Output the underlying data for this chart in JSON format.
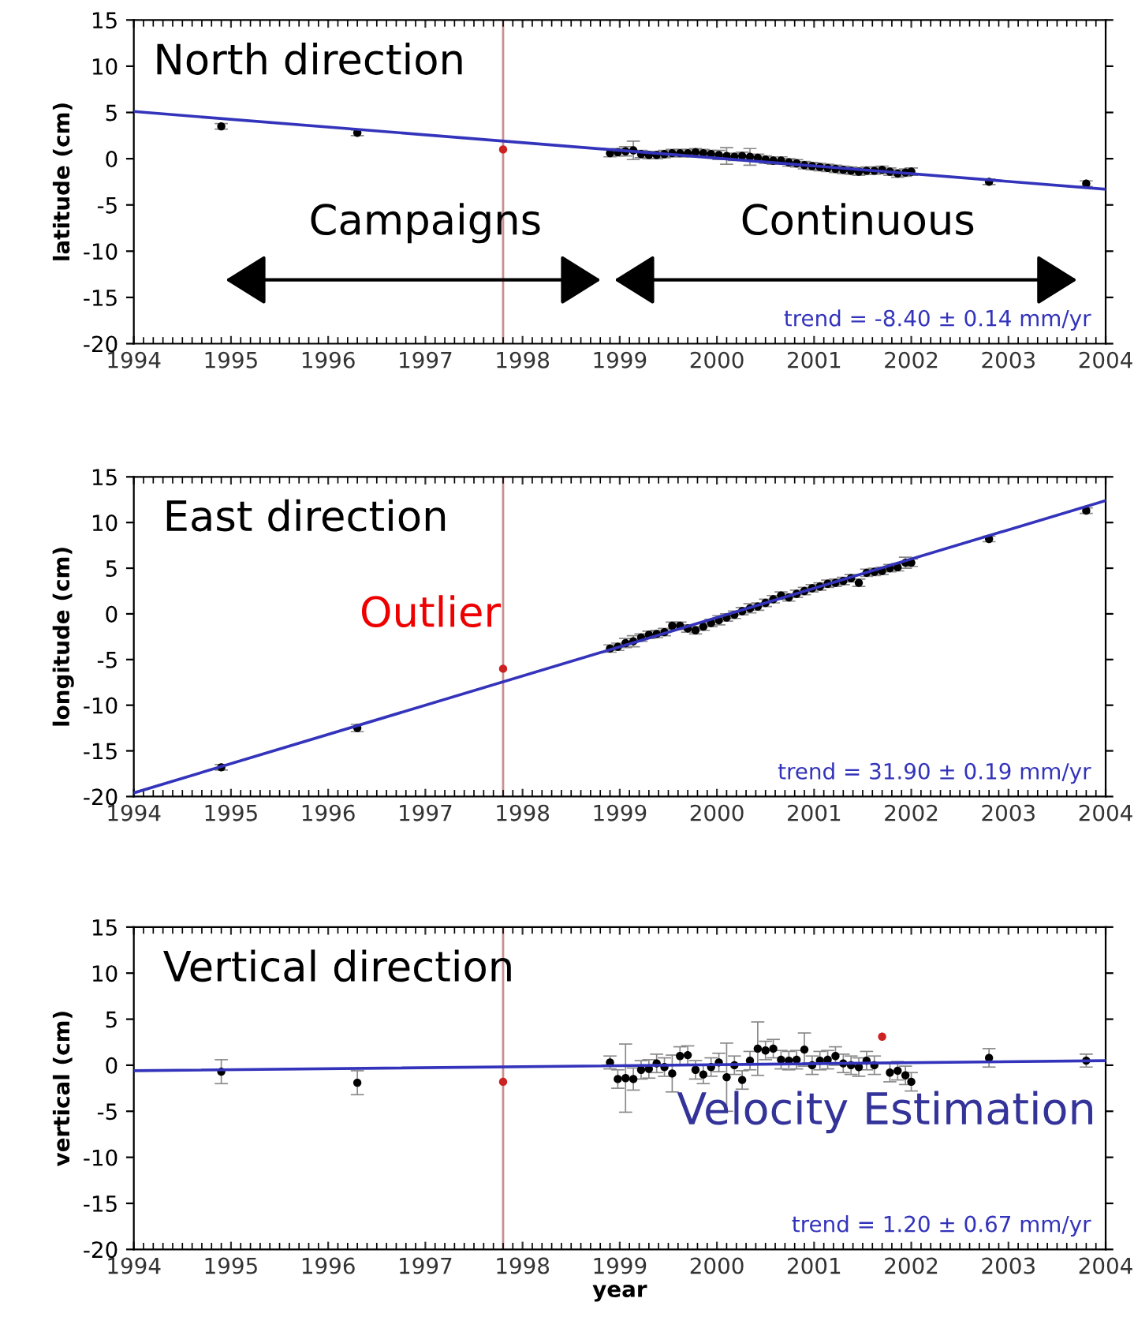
{
  "chart_data": [
    {
      "type": "scatter",
      "ylabel": "latitude (cm)",
      "xlim": [
        1994,
        2004
      ],
      "xticks": [
        1994,
        1995,
        1996,
        1997,
        1998,
        1999,
        2000,
        2001,
        2002,
        2003,
        2004
      ],
      "ylim": [
        -20,
        15
      ],
      "yticks": [
        -20,
        -15,
        -10,
        -5,
        0,
        5,
        10,
        15
      ],
      "grid": false,
      "legend": false,
      "marker": "circle",
      "annotations": [
        "North direction",
        "Campaigns",
        "Continuous",
        "trend = -8.40 ± 0.14 mm/yr"
      ],
      "ref_lines": [
        {
          "axis": "x",
          "value": 1997.8,
          "color": "#c89090"
        }
      ],
      "series": [
        {
          "color": "#000000",
          "x": [
            1994.9,
            1996.3,
            1998.9,
            1998.98,
            1999.06,
            1999.14,
            1999.22,
            1999.3,
            1999.38,
            1999.46,
            1999.54,
            1999.62,
            1999.7,
            1999.78,
            1999.86,
            1999.94,
            2000.02,
            2000.1,
            2000.18,
            2000.26,
            2000.34,
            2000.42,
            2000.5,
            2000.58,
            2000.66,
            2000.74,
            2000.82,
            2000.9,
            2000.98,
            2001.06,
            2001.14,
            2001.22,
            2001.3,
            2001.38,
            2001.46,
            2001.54,
            2001.62,
            2001.7,
            2001.78,
            2001.86,
            2001.94,
            2002.0,
            2002.8,
            2003.8
          ],
          "values": [
            3.5,
            2.8,
            0.6,
            0.7,
            0.8,
            0.9,
            0.5,
            0.4,
            0.4,
            0.5,
            0.6,
            0.6,
            0.6,
            0.7,
            0.6,
            0.5,
            0.4,
            0.3,
            0.2,
            0.3,
            0.2,
            0.1,
            -0.1,
            -0.2,
            -0.2,
            -0.4,
            -0.5,
            -0.7,
            -0.8,
            -0.9,
            -1.0,
            -1.1,
            -1.2,
            -1.3,
            -1.4,
            -1.3,
            -1.3,
            -1.2,
            -1.4,
            -1.6,
            -1.5,
            -1.4,
            -2.5,
            -2.7
          ],
          "errors": [
            0.3,
            0.3,
            0.4,
            0.4,
            0.5,
            1.0,
            0.4,
            0.4,
            0.4,
            0.4,
            0.4,
            0.4,
            0.4,
            0.4,
            0.4,
            0.4,
            0.5,
            0.9,
            0.4,
            0.4,
            0.9,
            0.4,
            0.4,
            0.4,
            0.4,
            0.4,
            0.4,
            0.4,
            0.4,
            0.4,
            0.4,
            0.4,
            0.4,
            0.4,
            0.4,
            0.4,
            0.4,
            0.4,
            0.4,
            0.4,
            0.4,
            0.4,
            0.3,
            0.3
          ]
        },
        {
          "color": "#cc2222",
          "x": [
            1997.8
          ],
          "values": [
            1.0
          ]
        },
        {
          "type": "line",
          "marker": "none",
          "color": "#3333bb",
          "x": [
            1994,
            2004
          ],
          "values": [
            5.1,
            -3.3
          ]
        }
      ]
    },
    {
      "type": "scatter",
      "ylabel": "longitude (cm)",
      "xlim": [
        1994,
        2004
      ],
      "xticks": [
        1994,
        1995,
        1996,
        1997,
        1998,
        1999,
        2000,
        2001,
        2002,
        2003,
        2004
      ],
      "ylim": [
        -20,
        15
      ],
      "yticks": [
        -20,
        -15,
        -10,
        -5,
        0,
        5,
        10,
        15
      ],
      "grid": false,
      "legend": false,
      "marker": "circle",
      "annotations": [
        "East direction",
        "Outlier",
        "trend = 31.90 ± 0.19 mm/yr"
      ],
      "ref_lines": [
        {
          "axis": "x",
          "value": 1997.8,
          "color": "#c89090"
        }
      ],
      "series": [
        {
          "color": "#000000",
          "x": [
            1994.9,
            1996.3,
            1998.9,
            1998.98,
            1999.06,
            1999.14,
            1999.22,
            1999.3,
            1999.38,
            1999.46,
            1999.54,
            1999.62,
            1999.7,
            1999.78,
            1999.86,
            1999.94,
            2000.02,
            2000.1,
            2000.18,
            2000.26,
            2000.34,
            2000.42,
            2000.5,
            2000.58,
            2000.66,
            2000.74,
            2000.82,
            2000.9,
            2000.98,
            2001.06,
            2001.14,
            2001.22,
            2001.3,
            2001.38,
            2001.46,
            2001.54,
            2001.62,
            2001.7,
            2001.78,
            2001.86,
            2001.94,
            2002.0,
            2002.8,
            2003.8
          ],
          "values": [
            -16.8,
            -12.5,
            -3.8,
            -3.6,
            -3.2,
            -3.0,
            -2.6,
            -2.3,
            -2.2,
            -2.0,
            -1.3,
            -1.3,
            -1.6,
            -1.8,
            -1.4,
            -1.0,
            -0.7,
            -0.4,
            -0.1,
            0.3,
            0.6,
            0.8,
            1.2,
            1.6,
            2.0,
            1.8,
            2.2,
            2.5,
            2.8,
            3.0,
            3.3,
            3.4,
            3.6,
            3.9,
            3.4,
            4.5,
            4.6,
            4.7,
            5.0,
            5.1,
            5.6,
            5.6,
            8.2,
            11.3
          ],
          "errors": [
            0.3,
            0.4,
            0.4,
            0.4,
            0.5,
            0.6,
            0.4,
            0.4,
            0.4,
            0.4,
            0.4,
            0.4,
            0.4,
            0.4,
            0.4,
            0.4,
            0.5,
            0.4,
            0.4,
            0.4,
            0.5,
            0.4,
            0.4,
            0.4,
            0.4,
            0.4,
            0.4,
            0.4,
            0.4,
            0.4,
            0.4,
            0.4,
            0.4,
            0.4,
            0.4,
            0.4,
            0.4,
            0.4,
            0.4,
            0.4,
            0.6,
            0.4,
            0.3,
            0.3
          ]
        },
        {
          "color": "#cc2222",
          "x": [
            1997.8
          ],
          "values": [
            -6.0
          ]
        },
        {
          "type": "line",
          "marker": "none",
          "color": "#3333bb",
          "x": [
            1994,
            2004
          ],
          "values": [
            -19.6,
            12.4
          ]
        }
      ]
    },
    {
      "type": "scatter",
      "xlabel": "year",
      "ylabel": "vertical (cm)",
      "xlim": [
        1994,
        2004
      ],
      "xticks": [
        1994,
        1995,
        1996,
        1997,
        1998,
        1999,
        2000,
        2001,
        2002,
        2003,
        2004
      ],
      "ylim": [
        -20,
        15
      ],
      "yticks": [
        -20,
        -15,
        -10,
        -5,
        0,
        5,
        10,
        15
      ],
      "grid": false,
      "legend": false,
      "marker": "circle",
      "annotations": [
        "Vertical direction",
        "Velocity Estimation",
        "trend = 1.20 ± 0.67 mm/yr"
      ],
      "ref_lines": [
        {
          "axis": "x",
          "value": 1997.8,
          "color": "#c89090"
        }
      ],
      "series": [
        {
          "color": "#000000",
          "x": [
            1994.9,
            1996.3,
            1998.9,
            1998.98,
            1999.06,
            1999.14,
            1999.22,
            1999.3,
            1999.38,
            1999.46,
            1999.54,
            1999.62,
            1999.7,
            1999.78,
            1999.86,
            1999.94,
            2000.02,
            2000.1,
            2000.18,
            2000.26,
            2000.34,
            2000.42,
            2000.5,
            2000.58,
            2000.66,
            2000.74,
            2000.82,
            2000.9,
            2000.98,
            2001.06,
            2001.14,
            2001.22,
            2001.3,
            2001.38,
            2001.46,
            2001.54,
            2001.62,
            2001.78,
            2001.86,
            2001.94,
            2002.0,
            2002.8,
            2003.8
          ],
          "values": [
            -0.7,
            -1.9,
            0.3,
            -1.5,
            -1.4,
            -1.5,
            -0.5,
            -0.4,
            0.2,
            -0.2,
            -0.9,
            1.0,
            1.1,
            -0.5,
            -1.0,
            -0.2,
            0.3,
            -1.3,
            0.0,
            -1.6,
            0.5,
            1.8,
            1.6,
            1.8,
            0.6,
            0.5,
            0.6,
            1.7,
            0.0,
            0.5,
            0.6,
            1.0,
            0.2,
            0.0,
            -0.2,
            0.5,
            0.0,
            -0.8,
            -0.6,
            -1.1,
            -1.8,
            0.8,
            0.5
          ],
          "errors": [
            1.3,
            1.3,
            0.7,
            1.0,
            3.7,
            1.2,
            1.0,
            1.0,
            1.0,
            1.0,
            2.0,
            1.0,
            1.0,
            1.0,
            1.0,
            1.0,
            1.0,
            3.7,
            1.0,
            1.0,
            1.0,
            2.9,
            1.0,
            1.0,
            1.0,
            1.0,
            1.0,
            1.8,
            1.0,
            1.0,
            1.0,
            1.0,
            1.0,
            1.0,
            1.0,
            1.0,
            1.0,
            1.0,
            1.0,
            1.0,
            1.0,
            1.0,
            0.7
          ]
        },
        {
          "color": "#cc2222",
          "x": [
            1997.8,
            2001.7
          ],
          "values": [
            -1.8,
            3.1
          ]
        },
        {
          "type": "line",
          "marker": "none",
          "color": "#3333bb",
          "x": [
            1994,
            2004
          ],
          "values": [
            -0.6,
            0.5
          ]
        }
      ]
    }
  ]
}
